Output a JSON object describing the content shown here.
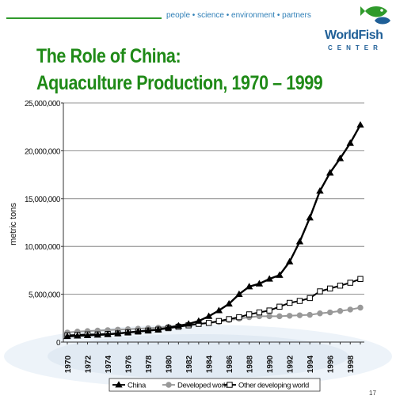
{
  "header": {
    "tagline": "people • science • environment • partners",
    "title_line1": "The Role of China:",
    "title_line2": "Aquaculture Production, 1970 – 1999"
  },
  "logo": {
    "word": "WorldFish",
    "sub": "CENTER"
  },
  "page_number": "17",
  "colors": {
    "title": "#1f8a17",
    "brand_blue": "#1f5f97",
    "accent_green": "#2f9a2b"
  },
  "chart_data": {
    "type": "line",
    "title": "",
    "xlabel": "",
    "ylabel": "metric tons",
    "ylim": [
      0,
      25000000
    ],
    "yticks": [
      0,
      5000000,
      10000000,
      15000000,
      20000000,
      25000000
    ],
    "ytick_labels": [
      "0",
      "5,000,000",
      "10,000,000",
      "15,000,000",
      "20,000,000",
      "25,000,000"
    ],
    "x": [
      1970,
      1971,
      1972,
      1973,
      1974,
      1975,
      1976,
      1977,
      1978,
      1979,
      1980,
      1981,
      1982,
      1983,
      1984,
      1985,
      1986,
      1987,
      1988,
      1989,
      1990,
      1991,
      1992,
      1993,
      1994,
      1995,
      1996,
      1997,
      1998,
      1999
    ],
    "xtick_labels": [
      "1970",
      "1972",
      "1974",
      "1976",
      "1978",
      "1980",
      "1982",
      "1984",
      "1986",
      "1988",
      "1990",
      "1992",
      "1994",
      "1996",
      "1998"
    ],
    "grid": "horizontal",
    "legend_position": "bottom",
    "series": [
      {
        "name": "China",
        "marker": "triangle",
        "values": [
          600000,
          650000,
          700000,
          750000,
          800000,
          900000,
          1000000,
          1100000,
          1200000,
          1300000,
          1500000,
          1700000,
          1900000,
          2200000,
          2700000,
          3300000,
          4000000,
          5000000,
          5800000,
          6100000,
          6600000,
          7000000,
          8400000,
          10500000,
          13000000,
          15800000,
          17700000,
          19200000,
          20800000,
          22700000
        ]
      },
      {
        "name": "Developed world",
        "marker": "circle",
        "values": [
          1000000,
          1100000,
          1150000,
          1200000,
          1250000,
          1300000,
          1350000,
          1400000,
          1450000,
          1500000,
          1600000,
          1700000,
          1800000,
          1900000,
          2000000,
          2100000,
          2300000,
          2450000,
          2600000,
          2700000,
          2700000,
          2700000,
          2750000,
          2800000,
          2850000,
          3000000,
          3100000,
          3250000,
          3400000,
          3600000
        ]
      },
      {
        "name": "Other developing world",
        "marker": "square",
        "values": [
          700000,
          750000,
          800000,
          800000,
          850000,
          900000,
          1000000,
          1100000,
          1200000,
          1300000,
          1450000,
          1600000,
          1750000,
          1900000,
          2000000,
          2200000,
          2400000,
          2600000,
          2900000,
          3100000,
          3300000,
          3700000,
          4100000,
          4300000,
          4600000,
          5300000,
          5600000,
          5900000,
          6200000,
          6600000
        ]
      }
    ]
  }
}
